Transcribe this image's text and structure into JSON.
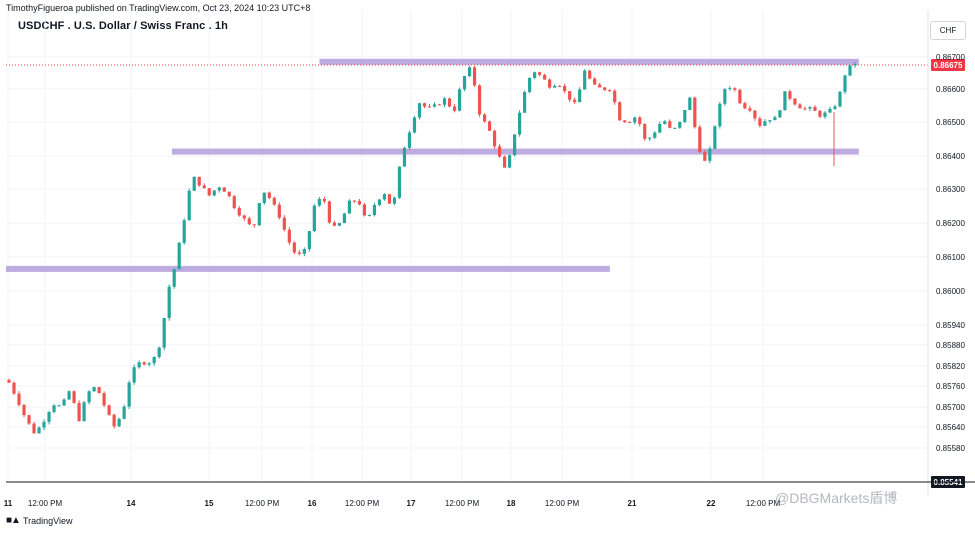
{
  "header": {
    "publisher_line": "TimothyFigueroa published on TradingView.com, Oct 23, 2024 10:23 UTC+8"
  },
  "chart_title": "USDCHF . U.S. Dollar / Swiss Franc . 1h",
  "currency_badge": "CHF",
  "footer": {
    "brand": "TradingView",
    "logo_icon": "tradingview-logo-icon"
  },
  "watermark": "@DBGMarkets盾博",
  "colors": {
    "up": "#26a69a",
    "down": "#ef5350",
    "level": "#b39ddb",
    "price_line": "#f23645",
    "axis_text": "#131722",
    "grid": "#f0f3fa"
  },
  "chart_data": {
    "type": "candlestick",
    "title": "USDCHF . U.S. Dollar / Swiss Franc . 1h",
    "xlabel": "",
    "ylabel": "",
    "ylim": [
      0.8551,
      0.8673
    ],
    "grid": true,
    "x_tick_labels": [
      "11",
      "12:00 PM",
      "14",
      "15",
      "12:00 PM",
      "16",
      "12:00 PM",
      "17",
      "12:00 PM",
      "18",
      "12:00 PM",
      "21",
      "22",
      "12:00 PM"
    ],
    "y_tick_labels": [
      "0.86700",
      "0.86600",
      "0.86500",
      "0.86400",
      "0.86300",
      "0.86200",
      "0.86100",
      "0.86000",
      "0.85940",
      "0.85880",
      "0.85820",
      "0.85760",
      "0.85700",
      "0.85640",
      "0.85580"
    ],
    "current_price": {
      "value": 0.86675,
      "label": "0.86675"
    },
    "low_marker": {
      "value": 0.85541,
      "label": "0.85541"
    },
    "levels": [
      {
        "name": "resistance-zone",
        "value": 0.86685,
        "from_index": 0.34,
        "to_index": 0.925
      },
      {
        "name": "middle-support-zone",
        "value": 0.86413,
        "from_index": 0.18,
        "to_index": 0.925
      },
      {
        "name": "lower-support-zone",
        "value": 0.86065,
        "from_index": 0.0,
        "to_index": 0.655
      }
    ],
    "path": [
      [
        0,
        0.8577
      ],
      [
        5,
        0.8572
      ],
      [
        10,
        0.8566
      ],
      [
        15,
        0.8562
      ],
      [
        20,
        0.8566
      ],
      [
        25,
        0.8571
      ],
      [
        30,
        0.857
      ],
      [
        35,
        0.8575
      ],
      [
        40,
        0.8566
      ],
      [
        45,
        0.8574
      ],
      [
        50,
        0.8576
      ],
      [
        55,
        0.857
      ],
      [
        60,
        0.8564
      ],
      [
        65,
        0.8568
      ],
      [
        70,
        0.858
      ],
      [
        75,
        0.8583
      ],
      [
        80,
        0.8583
      ],
      [
        85,
        0.8585
      ],
      [
        90,
        0.8598
      ],
      [
        95,
        0.8607
      ],
      [
        100,
        0.862
      ],
      [
        105,
        0.8634
      ],
      [
        110,
        0.8631
      ],
      [
        115,
        0.8628
      ],
      [
        120,
        0.8631
      ],
      [
        125,
        0.8629
      ],
      [
        130,
        0.8624
      ],
      [
        135,
        0.8621
      ],
      [
        140,
        0.8618
      ],
      [
        145,
        0.863
      ],
      [
        150,
        0.8627
      ],
      [
        155,
        0.8622
      ],
      [
        160,
        0.8615
      ],
      [
        165,
        0.861
      ],
      [
        170,
        0.8612
      ],
      [
        175,
        0.8625
      ],
      [
        180,
        0.8628
      ],
      [
        185,
        0.8618
      ],
      [
        190,
        0.862
      ],
      [
        195,
        0.8626
      ],
      [
        200,
        0.8627
      ],
      [
        205,
        0.862
      ],
      [
        210,
        0.8626
      ],
      [
        215,
        0.8629
      ],
      [
        220,
        0.8624
      ],
      [
        225,
        0.864
      ],
      [
        230,
        0.8648
      ],
      [
        235,
        0.8656
      ],
      [
        240,
        0.8654
      ],
      [
        245,
        0.8655
      ],
      [
        250,
        0.8657
      ],
      [
        255,
        0.8653
      ],
      [
        260,
        0.8663
      ],
      [
        265,
        0.8667
      ],
      [
        270,
        0.8652
      ],
      [
        275,
        0.8648
      ],
      [
        280,
        0.8641
      ],
      [
        285,
        0.8635
      ],
      [
        290,
        0.8647
      ],
      [
        295,
        0.8658
      ],
      [
        300,
        0.8666
      ],
      [
        305,
        0.8664
      ],
      [
        310,
        0.8661
      ],
      [
        315,
        0.8662
      ],
      [
        320,
        0.8658
      ],
      [
        325,
        0.8655
      ],
      [
        330,
        0.8666
      ],
      [
        335,
        0.8661
      ],
      [
        340,
        0.866
      ],
      [
        345,
        0.866
      ],
      [
        350,
        0.8651
      ],
      [
        355,
        0.865
      ],
      [
        360,
        0.8652
      ],
      [
        365,
        0.8644
      ],
      [
        370,
        0.8647
      ],
      [
        375,
        0.8651
      ],
      [
        380,
        0.8647
      ],
      [
        385,
        0.865
      ],
      [
        390,
        0.8658
      ],
      [
        395,
        0.8643
      ],
      [
        400,
        0.8637
      ],
      [
        405,
        0.865
      ],
      [
        410,
        0.866
      ],
      [
        415,
        0.8661
      ],
      [
        420,
        0.8655
      ],
      [
        425,
        0.8654
      ],
      [
        430,
        0.8649
      ],
      [
        435,
        0.8651
      ],
      [
        440,
        0.8651
      ],
      [
        445,
        0.8659
      ],
      [
        450,
        0.8656
      ],
      [
        455,
        0.8654
      ],
      [
        460,
        0.8654
      ],
      [
        465,
        0.8652
      ],
      [
        470,
        0.8653
      ],
      [
        475,
        0.8656
      ],
      [
        480,
        0.8666
      ],
      [
        485,
        0.8668
      ]
    ]
  }
}
